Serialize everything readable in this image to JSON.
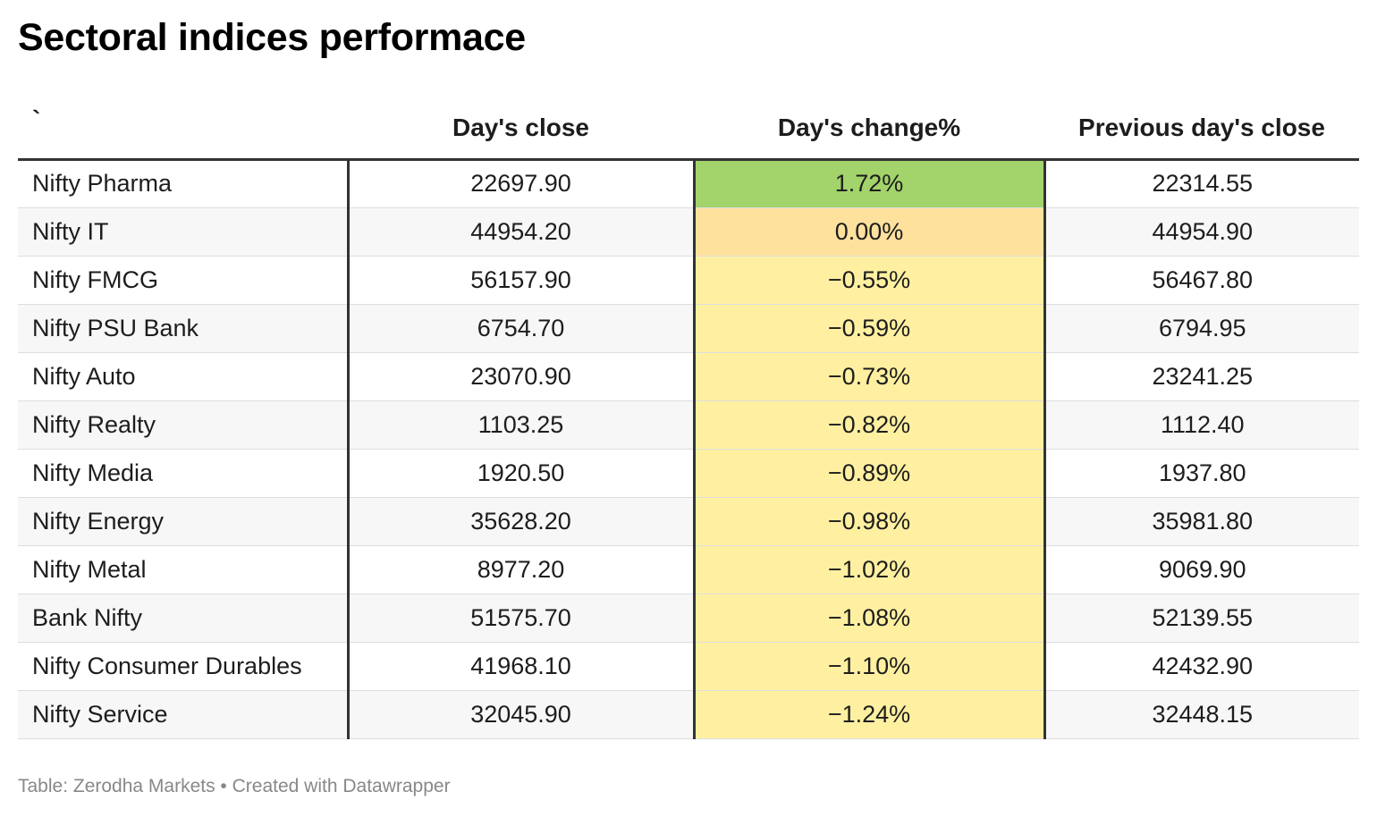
{
  "title": "Sectoral indices performace",
  "footer": "Table: Zerodha Markets • Created with Datawrapper",
  "colors": {
    "heat_positive": "#a3d36b",
    "heat_zero": "#ffe19e",
    "heat_negative": "#fff0a1",
    "rule": "#333333"
  },
  "chart_data": {
    "type": "table",
    "title": "Sectoral indices performace",
    "columns": [
      "`",
      "Day's close",
      "Day's change%",
      "Previous day's close"
    ],
    "rows": [
      {
        "name": "Nifty Pharma",
        "close": "22697.90",
        "change": "1.72%",
        "change_value": 1.72,
        "prev": "22314.55"
      },
      {
        "name": "Nifty IT",
        "close": "44954.20",
        "change": "0.00%",
        "change_value": 0.0,
        "prev": "44954.90"
      },
      {
        "name": "Nifty FMCG",
        "close": "56157.90",
        "change": "−0.55%",
        "change_value": -0.55,
        "prev": "56467.80"
      },
      {
        "name": "Nifty PSU Bank",
        "close": "6754.70",
        "change": "−0.59%",
        "change_value": -0.59,
        "prev": "6794.95"
      },
      {
        "name": "Nifty Auto",
        "close": "23070.90",
        "change": "−0.73%",
        "change_value": -0.73,
        "prev": "23241.25"
      },
      {
        "name": "Nifty Realty",
        "close": "1103.25",
        "change": "−0.82%",
        "change_value": -0.82,
        "prev": "1112.40"
      },
      {
        "name": "Nifty Media",
        "close": "1920.50",
        "change": "−0.89%",
        "change_value": -0.89,
        "prev": "1937.80"
      },
      {
        "name": "Nifty Energy",
        "close": "35628.20",
        "change": "−0.98%",
        "change_value": -0.98,
        "prev": "35981.80"
      },
      {
        "name": "Nifty Metal",
        "close": "8977.20",
        "change": "−1.02%",
        "change_value": -1.02,
        "prev": "9069.90"
      },
      {
        "name": "Bank Nifty",
        "close": "51575.70",
        "change": "−1.08%",
        "change_value": -1.08,
        "prev": "52139.55"
      },
      {
        "name": "Nifty Consumer Durables",
        "close": "41968.10",
        "change": "−1.10%",
        "change_value": -1.1,
        "prev": "42432.90"
      },
      {
        "name": "Nifty Service",
        "close": "32045.90",
        "change": "−1.24%",
        "change_value": -1.24,
        "prev": "32448.15"
      }
    ]
  }
}
